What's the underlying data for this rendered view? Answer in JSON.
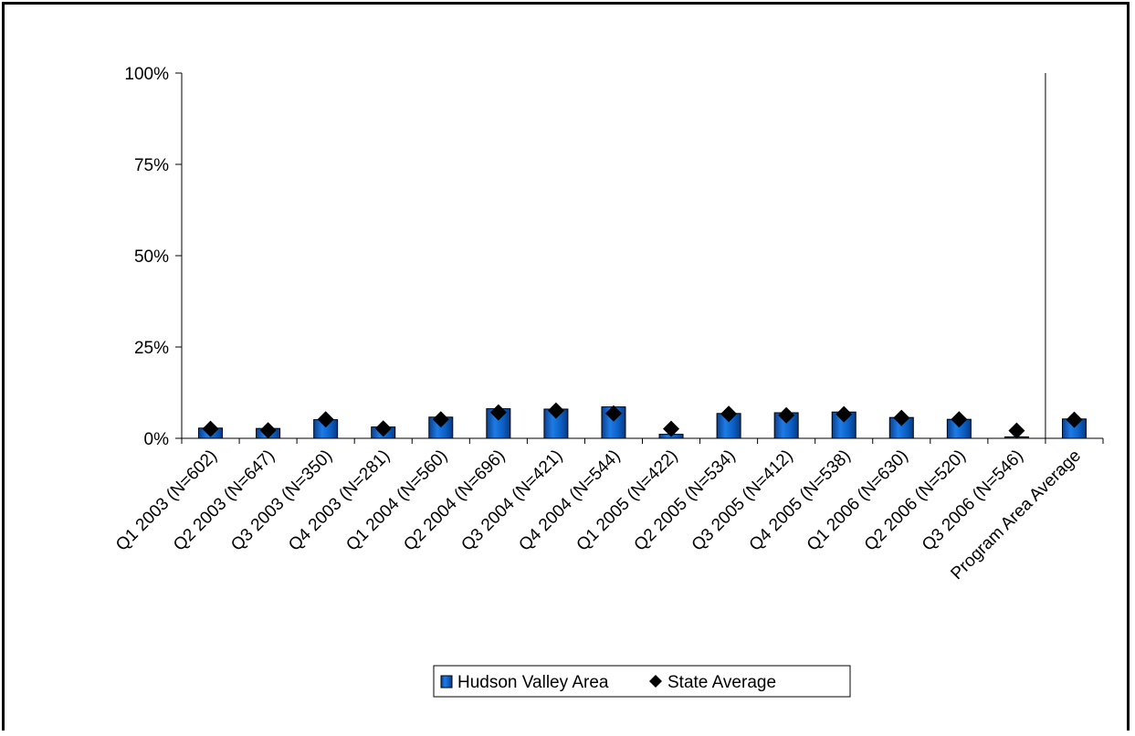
{
  "chart_data": {
    "type": "bar",
    "categories": [
      "Q1 2003 (N=602)",
      "Q2 2003 (N=647)",
      "Q3 2003 (N=350)",
      "Q4 2003 (N=281)",
      "Q1 2004 (N=560)",
      "Q2 2004 (N=696)",
      "Q3 2004 (N=421)",
      "Q4 2004 (N=544)",
      "Q1 2005 (N=422)",
      "Q2 2005 (N=534)",
      "Q3 2005 (N=412)",
      "Q4 2005 (N=538)",
      "Q1 2006 (N=630)",
      "Q2 2006 (N=520)",
      "Q3 2006 (N=546)",
      "Program Area Average"
    ],
    "series": [
      {
        "name": "Hudson Valley Area",
        "kind": "bar",
        "color": "#0b5fc4",
        "values": [
          2.8,
          2.7,
          5.1,
          3.1,
          5.8,
          8.1,
          8.0,
          8.6,
          1.1,
          6.8,
          7.0,
          7.2,
          5.7,
          5.2,
          0.4,
          5.3
        ]
      },
      {
        "name": "State Average",
        "kind": "marker-diamond",
        "color": "#000000",
        "values": [
          2.6,
          2.2,
          5.2,
          2.7,
          5.2,
          7.1,
          7.6,
          6.8,
          2.6,
          6.7,
          6.3,
          6.6,
          5.6,
          5.2,
          2.1,
          5.1
        ]
      }
    ],
    "ylim": [
      0,
      100
    ],
    "yticks": [
      "0%",
      "25%",
      "50%",
      "75%",
      "100%"
    ],
    "ytick_values": [
      0,
      25,
      50,
      75,
      100
    ],
    "separator_before_index": 15,
    "legend_position": "bottom",
    "grid": false
  }
}
